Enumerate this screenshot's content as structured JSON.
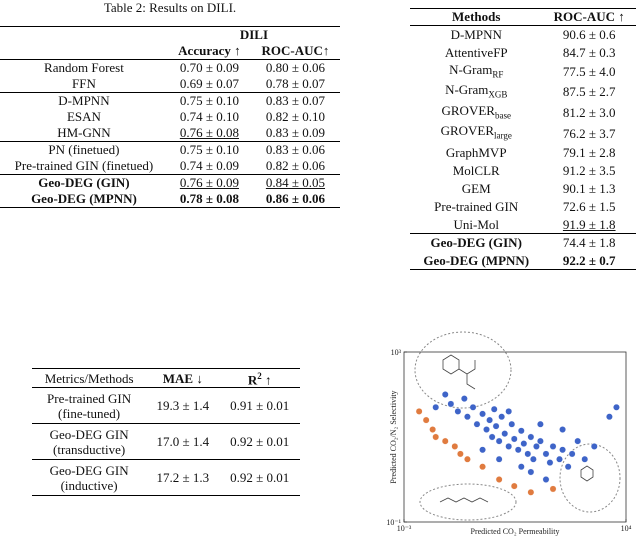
{
  "table_dili": {
    "caption": "Table 2: Results on DILI.",
    "group_header": "DILI",
    "columns": [
      "Accuracy ↑",
      "ROC-AUC↑"
    ],
    "row_groups": [
      [
        [
          "Random Forest",
          "0.70 ± 0.09",
          "0.80 ± 0.06"
        ],
        [
          "FFN",
          "0.69 ± 0.07",
          "0.78 ± 0.07"
        ]
      ],
      [
        [
          "D-MPNN",
          "0.75 ± 0.10",
          "0.83 ± 0.07"
        ],
        [
          "ESAN",
          "0.74 ± 0.10",
          "0.82 ± 0.10"
        ],
        [
          "HM-GNN",
          "0.76 ± 0.08",
          "0.83 ± 0.09"
        ]
      ],
      [
        [
          "PN (finetued)",
          "0.75 ± 0.10",
          "0.83 ± 0.06"
        ],
        [
          "Pre-trained GIN (finetued)",
          "0.74 ± 0.09",
          "0.82 ± 0.06"
        ]
      ],
      [
        [
          "Geo-DEG (GIN)",
          "0.76 ± 0.09",
          "0.84 ± 0.05"
        ],
        [
          "Geo-DEG (MPNN)",
          "0.78 ± 0.08",
          "0.86 ± 0.06"
        ]
      ]
    ]
  },
  "table_roc": {
    "columns": [
      "Methods",
      "ROC-AUC ↑"
    ],
    "row_groups": [
      [
        [
          "D-MPNN",
          "90.6 ± 0.6"
        ],
        [
          "AttentiveFP",
          "84.7 ± 0.3"
        ],
        [
          {
            "text": "N-Gram",
            "sub": "RF"
          },
          "77.5 ± 4.0"
        ],
        [
          {
            "text": "N-Gram",
            "sub": "XGB"
          },
          "87.5 ± 2.7"
        ],
        [
          {
            "text": "GROVER",
            "sub": "base"
          },
          "81.2 ± 3.0"
        ],
        [
          {
            "text": "GROVER",
            "sub": "large"
          },
          "76.2 ± 3.7"
        ],
        [
          "GraphMVP",
          "79.1 ± 2.8"
        ],
        [
          "MolCLR",
          "91.2 ± 3.5"
        ],
        [
          "GEM",
          "90.1 ± 1.3"
        ],
        [
          "Pre-trained GIN",
          "72.6 ± 1.5"
        ],
        [
          "Uni-Mol",
          "91.9 ± 1.8"
        ]
      ],
      [
        [
          "Geo-DEG (GIN)",
          "74.4 ± 1.8"
        ],
        [
          "Geo-DEG (MPNN)",
          "92.2 ± 0.7"
        ]
      ]
    ]
  },
  "table_mae": {
    "columns": [
      "Metrics/Methods",
      "MAE ↓",
      {
        "text": "R",
        "sup": "2",
        "tail": " ↑"
      }
    ],
    "row_groups": [
      [
        [
          [
            "Pre-trained GIN",
            "(fine-tuned)"
          ],
          "19.3 ± 1.4",
          "0.91 ± 0.01"
        ]
      ],
      [
        [
          [
            "Geo-DEG GIN",
            "(transductive)"
          ],
          "17.0 ± 1.4",
          "0.92 ± 0.01"
        ]
      ],
      [
        [
          [
            "Geo-DEG GIN",
            "(inductive)"
          ],
          "17.2 ± 1.3",
          "0.92 ± 0.01"
        ]
      ]
    ]
  },
  "chart_data": {
    "type": "scatter",
    "x_label": "Predicted CO₂ Permeability",
    "y_label": "Predicted CO₂/N₂ Selectivity",
    "log_x": true,
    "log_y": true,
    "xlim": [
      0.001,
      10000
    ],
    "ylim": [
      0.1,
      1000
    ],
    "xticks": [
      {
        "value": 0.001,
        "label": "10⁻³"
      },
      {
        "value": 10000,
        "label": "10⁴"
      }
    ],
    "yticks": [
      {
        "value": 0.1,
        "label": "10⁻¹"
      },
      {
        "value": 1000,
        "label": "10³"
      }
    ],
    "series": [
      {
        "color": "#3e64c8",
        "x": [
          0.03,
          0.05,
          0.08,
          0.1,
          0.15,
          0.2,
          0.3,
          0.4,
          0.5,
          0.6,
          0.8,
          1,
          1.2,
          1.5,
          2,
          2.5,
          3,
          4,
          5,
          6,
          8,
          10,
          12,
          15,
          20,
          30,
          40,
          50,
          80,
          100,
          150,
          200,
          300,
          500,
          1000,
          3000,
          5000,
          0.02,
          0.01,
          0.7,
          2,
          20,
          100,
          10,
          30,
          0.3,
          1,
          5
        ],
        "values": [
          60,
          40,
          80,
          30,
          50,
          20,
          35,
          15,
          25,
          10,
          18,
          8,
          30,
          12,
          6,
          20,
          9,
          5,
          14,
          7,
          4,
          10,
          3,
          6,
          8,
          4,
          2.5,
          6,
          3,
          5,
          2,
          4,
          8,
          3,
          6,
          30,
          50,
          100,
          50,
          45,
          40,
          20,
          15,
          1.5,
          1,
          5,
          3,
          2
        ]
      },
      {
        "color": "#e07b3f",
        "x": [
          0.003,
          0.005,
          0.008,
          0.01,
          0.02,
          0.04,
          0.06,
          0.1,
          0.3,
          1,
          3,
          10,
          50
        ],
        "values": [
          40,
          25,
          15,
          10,
          8,
          6,
          4,
          3,
          2,
          1,
          0.7,
          0.5,
          0.6
        ]
      }
    ]
  }
}
